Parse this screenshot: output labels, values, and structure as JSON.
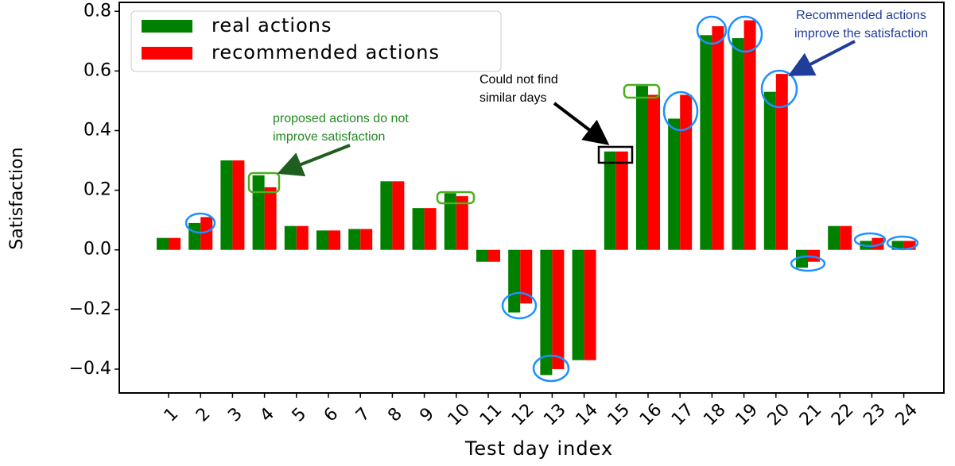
{
  "chart_data": {
    "type": "bar",
    "categories": [
      "1",
      "2",
      "3",
      "4",
      "5",
      "6",
      "7",
      "8",
      "9",
      "10",
      "11",
      "12",
      "13",
      "14",
      "15",
      "16",
      "17",
      "18",
      "19",
      "20",
      "21",
      "22",
      "23",
      "24"
    ],
    "series": [
      {
        "name": "real actions",
        "color": "#008000",
        "values": [
          0.04,
          0.09,
          0.3,
          0.25,
          0.08,
          0.065,
          0.07,
          0.23,
          0.14,
          0.19,
          -0.04,
          -0.21,
          -0.42,
          -0.37,
          0.33,
          0.55,
          0.44,
          0.72,
          0.71,
          0.53,
          -0.06,
          0.08,
          0.03,
          0.03
        ]
      },
      {
        "name": "recommended actions",
        "color": "#ff0000",
        "values": [
          0.04,
          0.11,
          0.3,
          0.21,
          0.08,
          0.065,
          0.07,
          0.23,
          0.14,
          0.18,
          -0.04,
          -0.18,
          -0.4,
          -0.37,
          0.33,
          0.52,
          0.52,
          0.75,
          0.77,
          0.59,
          -0.04,
          0.08,
          0.04,
          0.03
        ]
      }
    ],
    "xlabel": "Test day index",
    "ylabel": "Satisfaction",
    "ylim": [
      -0.48,
      0.83
    ],
    "yticks": [
      {
        "value": -0.4,
        "label": "−0.4"
      },
      {
        "value": -0.2,
        "label": "−0.2"
      },
      {
        "value": 0,
        "label": "0.0"
      },
      0.2,
      0.4,
      0.6,
      0.8
    ],
    "legend": "upper left",
    "annotations": [
      {
        "lines": [
          "proposed actions do not",
          "improve satisfaction"
        ],
        "color": "#228b22"
      },
      {
        "lines": [
          "Could not find",
          "similar days"
        ],
        "color": "#000000"
      },
      {
        "lines": [
          "Recommended actions",
          "improve the satisfaction"
        ],
        "color": "#1f3d99"
      }
    ]
  }
}
